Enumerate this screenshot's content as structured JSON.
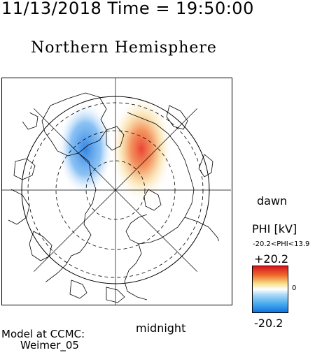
{
  "header": {
    "timestamp": "11/13/2018 Time = 19:50:00",
    "hemisphere": "Northern Hemisphere"
  },
  "map": {
    "projection": "polar-stereographic",
    "dashed_rings": 3,
    "meridian_lines": 8
  },
  "labels": {
    "dawn": "dawn",
    "midnight": "midnight"
  },
  "model": {
    "line1": "Model at CCMC:",
    "line2": "Weimer_05"
  },
  "colorbar": {
    "title": "PHI [kV]",
    "range_text": "-20.2<PHI<13.9",
    "max_label": "+20.2",
    "zero_label": "0",
    "min_label": "-20.2",
    "colors": {
      "negative": "#2a7fe0",
      "zero": "#ffffff",
      "positive": "#e8241c"
    }
  }
}
